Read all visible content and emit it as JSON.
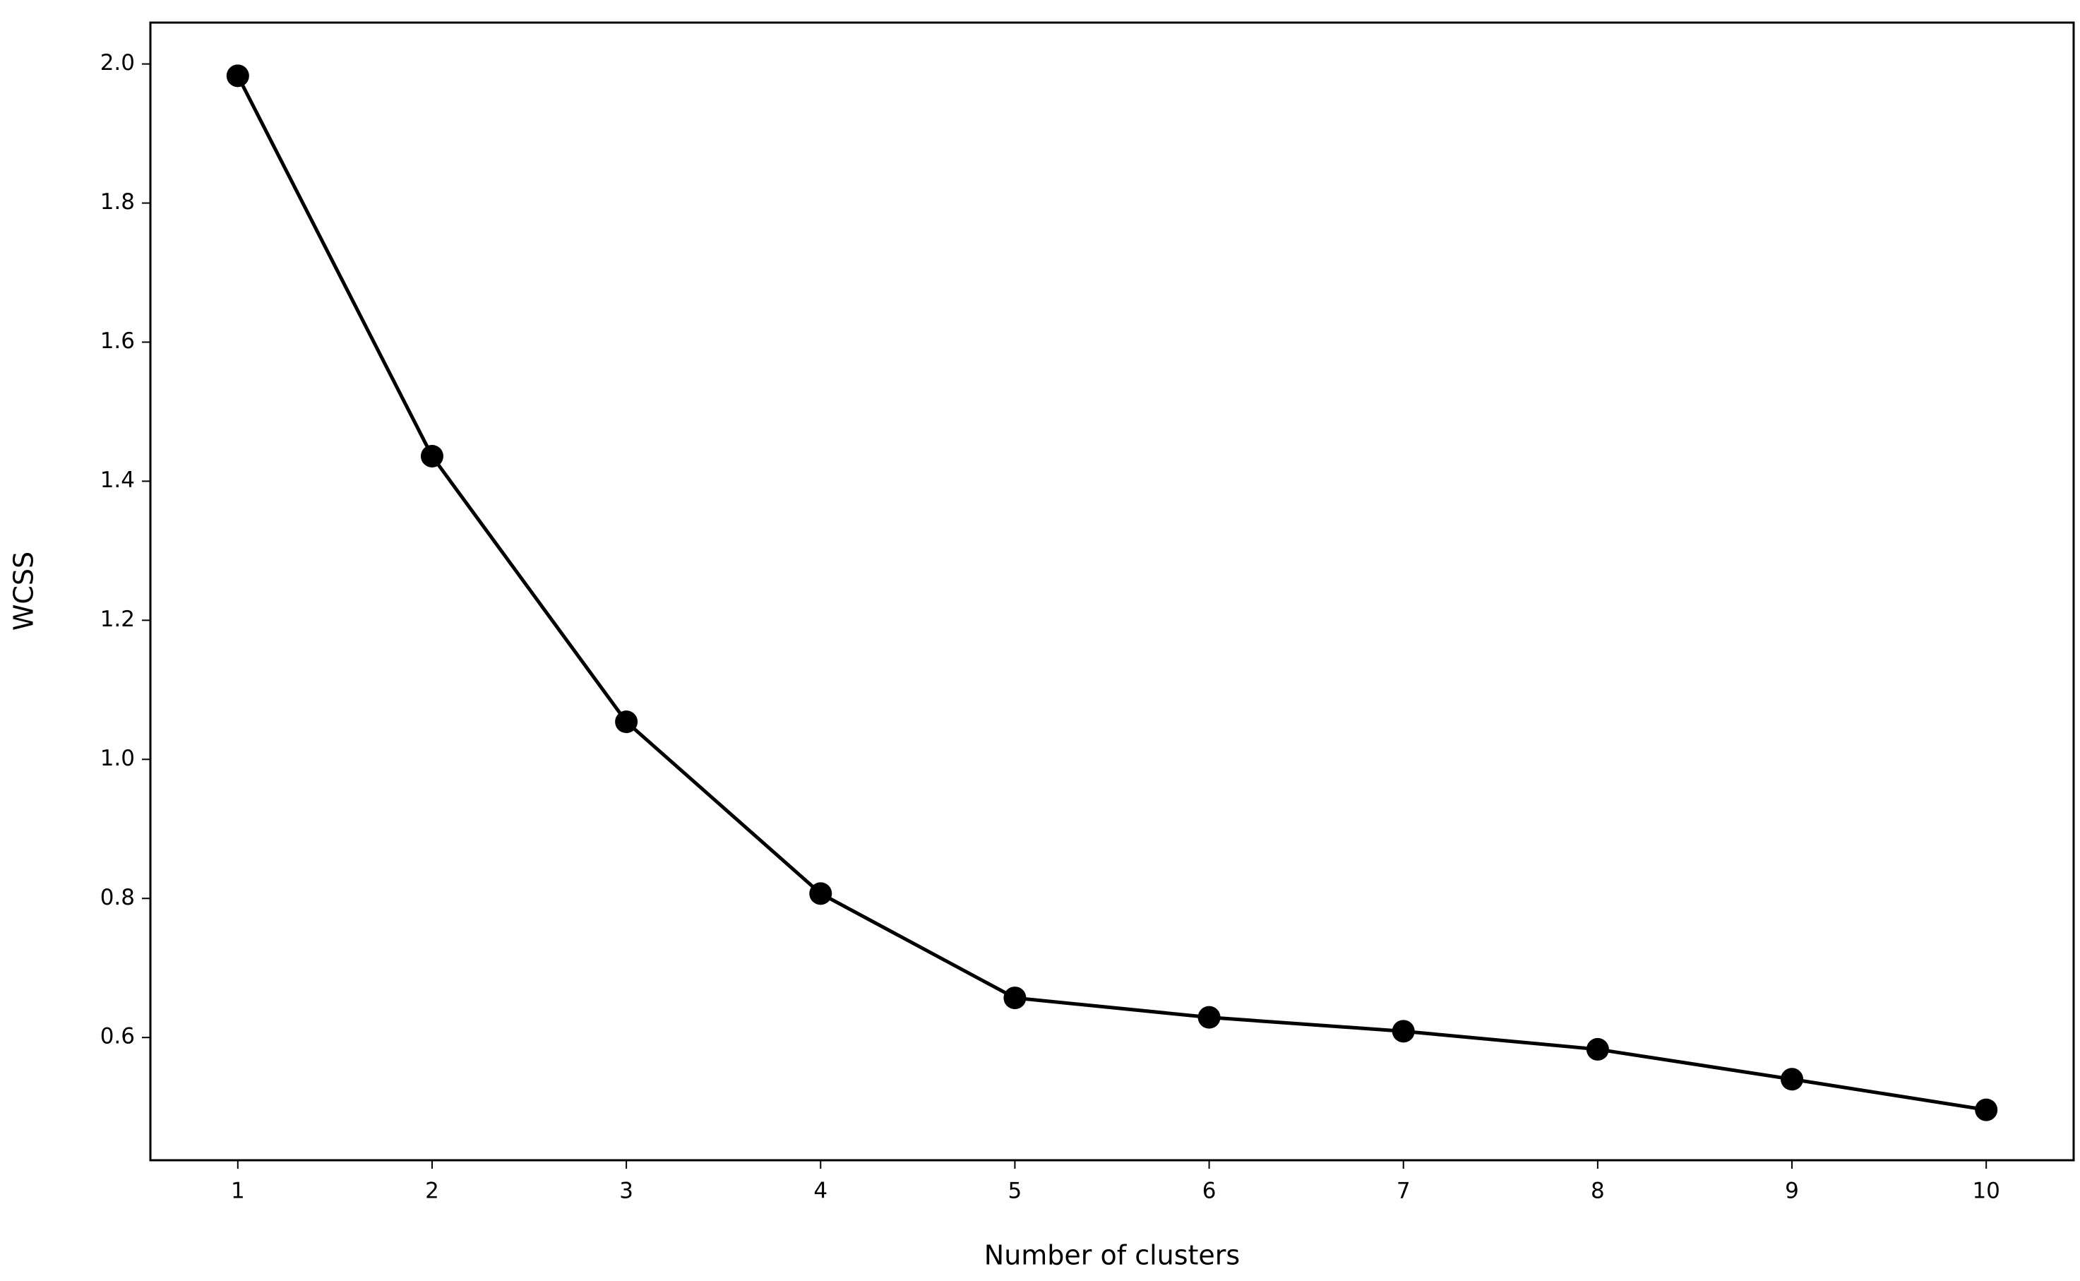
{
  "chart_data": {
    "type": "line",
    "x_label": "Number of clusters",
    "y_label": "WCSS",
    "x": [
      1,
      2,
      3,
      4,
      5,
      6,
      7,
      8,
      9,
      10
    ],
    "series": [
      {
        "color": "#000000",
        "values": [
          1.983,
          1.436,
          1.054,
          0.807,
          0.657,
          0.629,
          0.609,
          0.583,
          0.54,
          0.496
        ]
      }
    ],
    "xlim": [
      0.55,
      10.45
    ],
    "ylim": [
      0.4235,
      2.0595
    ],
    "xticks": [
      1,
      2,
      3,
      4,
      5,
      6,
      7,
      8,
      9,
      10
    ],
    "yticks": [
      0.6,
      0.8,
      {
        "value": 1,
        "label": "1.0"
      },
      1.2,
      1.4,
      1.6,
      1.8,
      {
        "value": 2,
        "label": "2.0"
      }
    ],
    "markers": true,
    "grid": false
  }
}
